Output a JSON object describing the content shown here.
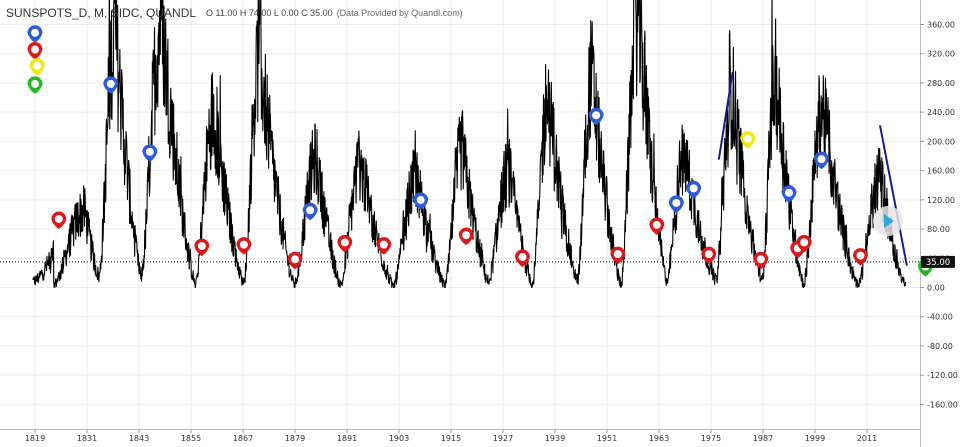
{
  "header": {
    "symbol": "SUNSPOTS_D, M, SIDC, QUANDL",
    "ohlc": "O 11.00 H 74.00 L 0.00 C 35.00",
    "provider": "(Data Provided by Quandl.com)"
  },
  "chart_data": {
    "type": "line",
    "title": "SUNSPOTS_D, M, SIDC, QUANDL",
    "xlabel": "",
    "ylabel": "",
    "x_ticks": [
      1819,
      1831,
      1843,
      1855,
      1867,
      1879,
      1891,
      1903,
      1915,
      1927,
      1939,
      1951,
      1963,
      1975,
      1987,
      1999,
      2011
    ],
    "y_ticks": [
      360,
      320,
      280,
      240,
      200,
      160,
      120,
      80,
      40,
      0,
      -40,
      -80,
      -120,
      -160
    ],
    "y_tick_labels": [
      "360.00",
      "320.00",
      "280.00",
      "240.00",
      "200.00",
      "160.00",
      "120.00",
      "80.00",
      "40.00",
      "0.00",
      "-40.00",
      "-80.00",
      "-120.00",
      "-160.00"
    ],
    "xlim": [
      1817,
      2027
    ],
    "ylim": [
      -195,
      390
    ],
    "last_value": 35,
    "last_value_label": "35.00",
    "grid": true,
    "cycles": [
      [
        1818.5,
        8,
        1829.8,
        90
      ],
      [
        1823.3,
        3,
        1830.5,
        105
      ],
      [
        1833.8,
        15,
        1837.5,
        350
      ],
      [
        1843.5,
        15,
        1848.2,
        365
      ],
      [
        1856.0,
        5,
        1860.3,
        240
      ],
      [
        1867.2,
        5,
        1870.8,
        320
      ],
      [
        1878.9,
        3,
        1883.9,
        175
      ],
      [
        1889.6,
        3,
        1894.1,
        170
      ],
      [
        1901.7,
        2,
        1907.1,
        150
      ],
      [
        1913.6,
        2,
        1917.6,
        190
      ],
      [
        1923.6,
        8,
        1928.4,
        160
      ],
      [
        1933.8,
        5,
        1937.4,
        255
      ],
      [
        1944.2,
        10,
        1947.5,
        290
      ],
      [
        1954.3,
        3,
        1958.2,
        375
      ],
      [
        1964.8,
        10,
        1968.9,
        180
      ],
      [
        1976.2,
        10,
        1979.9,
        270
      ],
      [
        1986.8,
        8,
        1989.9,
        285
      ],
      [
        1996.4,
        5,
        2000.8,
        245
      ],
      [
        2008.9,
        2,
        2014.2,
        150
      ],
      [
        2019.9,
        2,
        2024.5,
        200
      ]
    ],
    "series_end": 2020,
    "trend_lines": [
      [
        1976.8,
        175,
        1980.0,
        295
      ],
      [
        2014.0,
        222,
        2020.2,
        30
      ]
    ],
    "markers": [
      {
        "x": 1819,
        "y": 335,
        "color": "blue"
      },
      {
        "x": 1819,
        "y": 312,
        "color": "red"
      },
      {
        "x": 1819.5,
        "y": 290,
        "color": "yellow"
      },
      {
        "x": 1819,
        "y": 265,
        "color": "green"
      },
      {
        "x": 1824.5,
        "y": 80,
        "color": "red"
      },
      {
        "x": 1836.5,
        "y": 265,
        "color": "blue"
      },
      {
        "x": 1845.5,
        "y": 172,
        "color": "blue"
      },
      {
        "x": 1857.5,
        "y": 43,
        "color": "red"
      },
      {
        "x": 1867.2,
        "y": 45,
        "color": "red"
      },
      {
        "x": 1879.0,
        "y": 25,
        "color": "red"
      },
      {
        "x": 1882.5,
        "y": 92,
        "color": "blue"
      },
      {
        "x": 1890.5,
        "y": 48,
        "color": "red"
      },
      {
        "x": 1899.5,
        "y": 45,
        "color": "red"
      },
      {
        "x": 1908.0,
        "y": 106,
        "color": "blue"
      },
      {
        "x": 1918.5,
        "y": 58,
        "color": "red"
      },
      {
        "x": 1931.5,
        "y": 28,
        "color": "red"
      },
      {
        "x": 1948.5,
        "y": 222,
        "color": "blue"
      },
      {
        "x": 1953.5,
        "y": 32,
        "color": "red"
      },
      {
        "x": 1962.5,
        "y": 72,
        "color": "red"
      },
      {
        "x": 1967.0,
        "y": 102,
        "color": "blue"
      },
      {
        "x": 1971.0,
        "y": 122,
        "color": "blue"
      },
      {
        "x": 1974.5,
        "y": 32,
        "color": "red"
      },
      {
        "x": 1983.5,
        "y": 190,
        "color": "yellow"
      },
      {
        "x": 1986.5,
        "y": 25,
        "color": "red"
      },
      {
        "x": 1993.0,
        "y": 116,
        "color": "blue"
      },
      {
        "x": 1995.0,
        "y": 40,
        "color": "red"
      },
      {
        "x": 1996.5,
        "y": 48,
        "color": "red"
      },
      {
        "x": 2000.5,
        "y": 162,
        "color": "blue"
      },
      {
        "x": 2009.5,
        "y": 30,
        "color": "red"
      },
      {
        "x": 2024.5,
        "y": 15,
        "color": "green"
      }
    ],
    "marker_colors": {
      "blue": "#2b5cd6",
      "red": "#d9191b",
      "yellow": "#f2e90a",
      "green": "#22b81f"
    },
    "line_color": "#000000",
    "trend_color": "#1a1d8c",
    "grid_color": "#ececec"
  }
}
